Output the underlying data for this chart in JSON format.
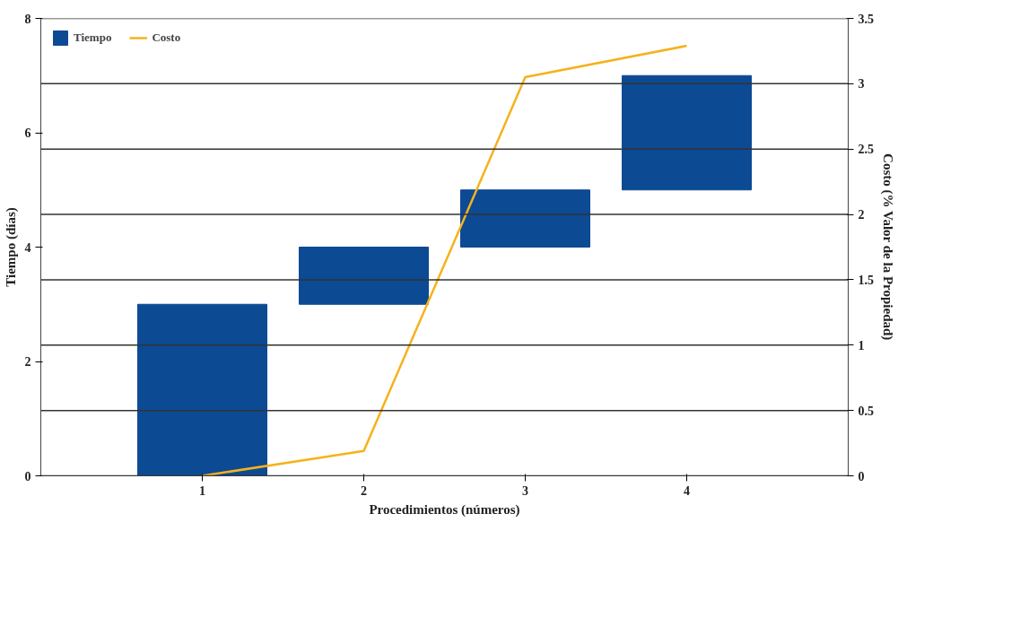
{
  "chart_data": {
    "type": "bar",
    "xlabel": "Procedimientos (números)",
    "ylabel": "Tiempo (días)",
    "y2label": "Costo (% Valor de la Propiedad)",
    "x": [
      1,
      2,
      3,
      4
    ],
    "xlim": [
      0,
      5
    ],
    "xticks": [
      1,
      2,
      3,
      4
    ],
    "ylim": [
      0,
      8
    ],
    "yticks": [
      0,
      2,
      4,
      6,
      8
    ],
    "y2lim": [
      0,
      3.5
    ],
    "y2ticks": [
      0,
      0.5,
      1,
      1.5,
      2,
      2.5,
      3,
      3.5
    ],
    "grid": "y2",
    "legend": "top left",
    "series": [
      {
        "name": "Tiempo",
        "color": "#0d4a94",
        "base": [
          0,
          3,
          4,
          5
        ],
        "values": [
          3,
          1,
          1,
          2
        ]
      },
      {
        "name": "Costo",
        "type": "line",
        "axis": "y2",
        "color": "#f5b21b",
        "marker": "none",
        "line_style": "solid",
        "values": [
          0,
          0.19,
          3.05,
          3.29
        ]
      }
    ]
  }
}
